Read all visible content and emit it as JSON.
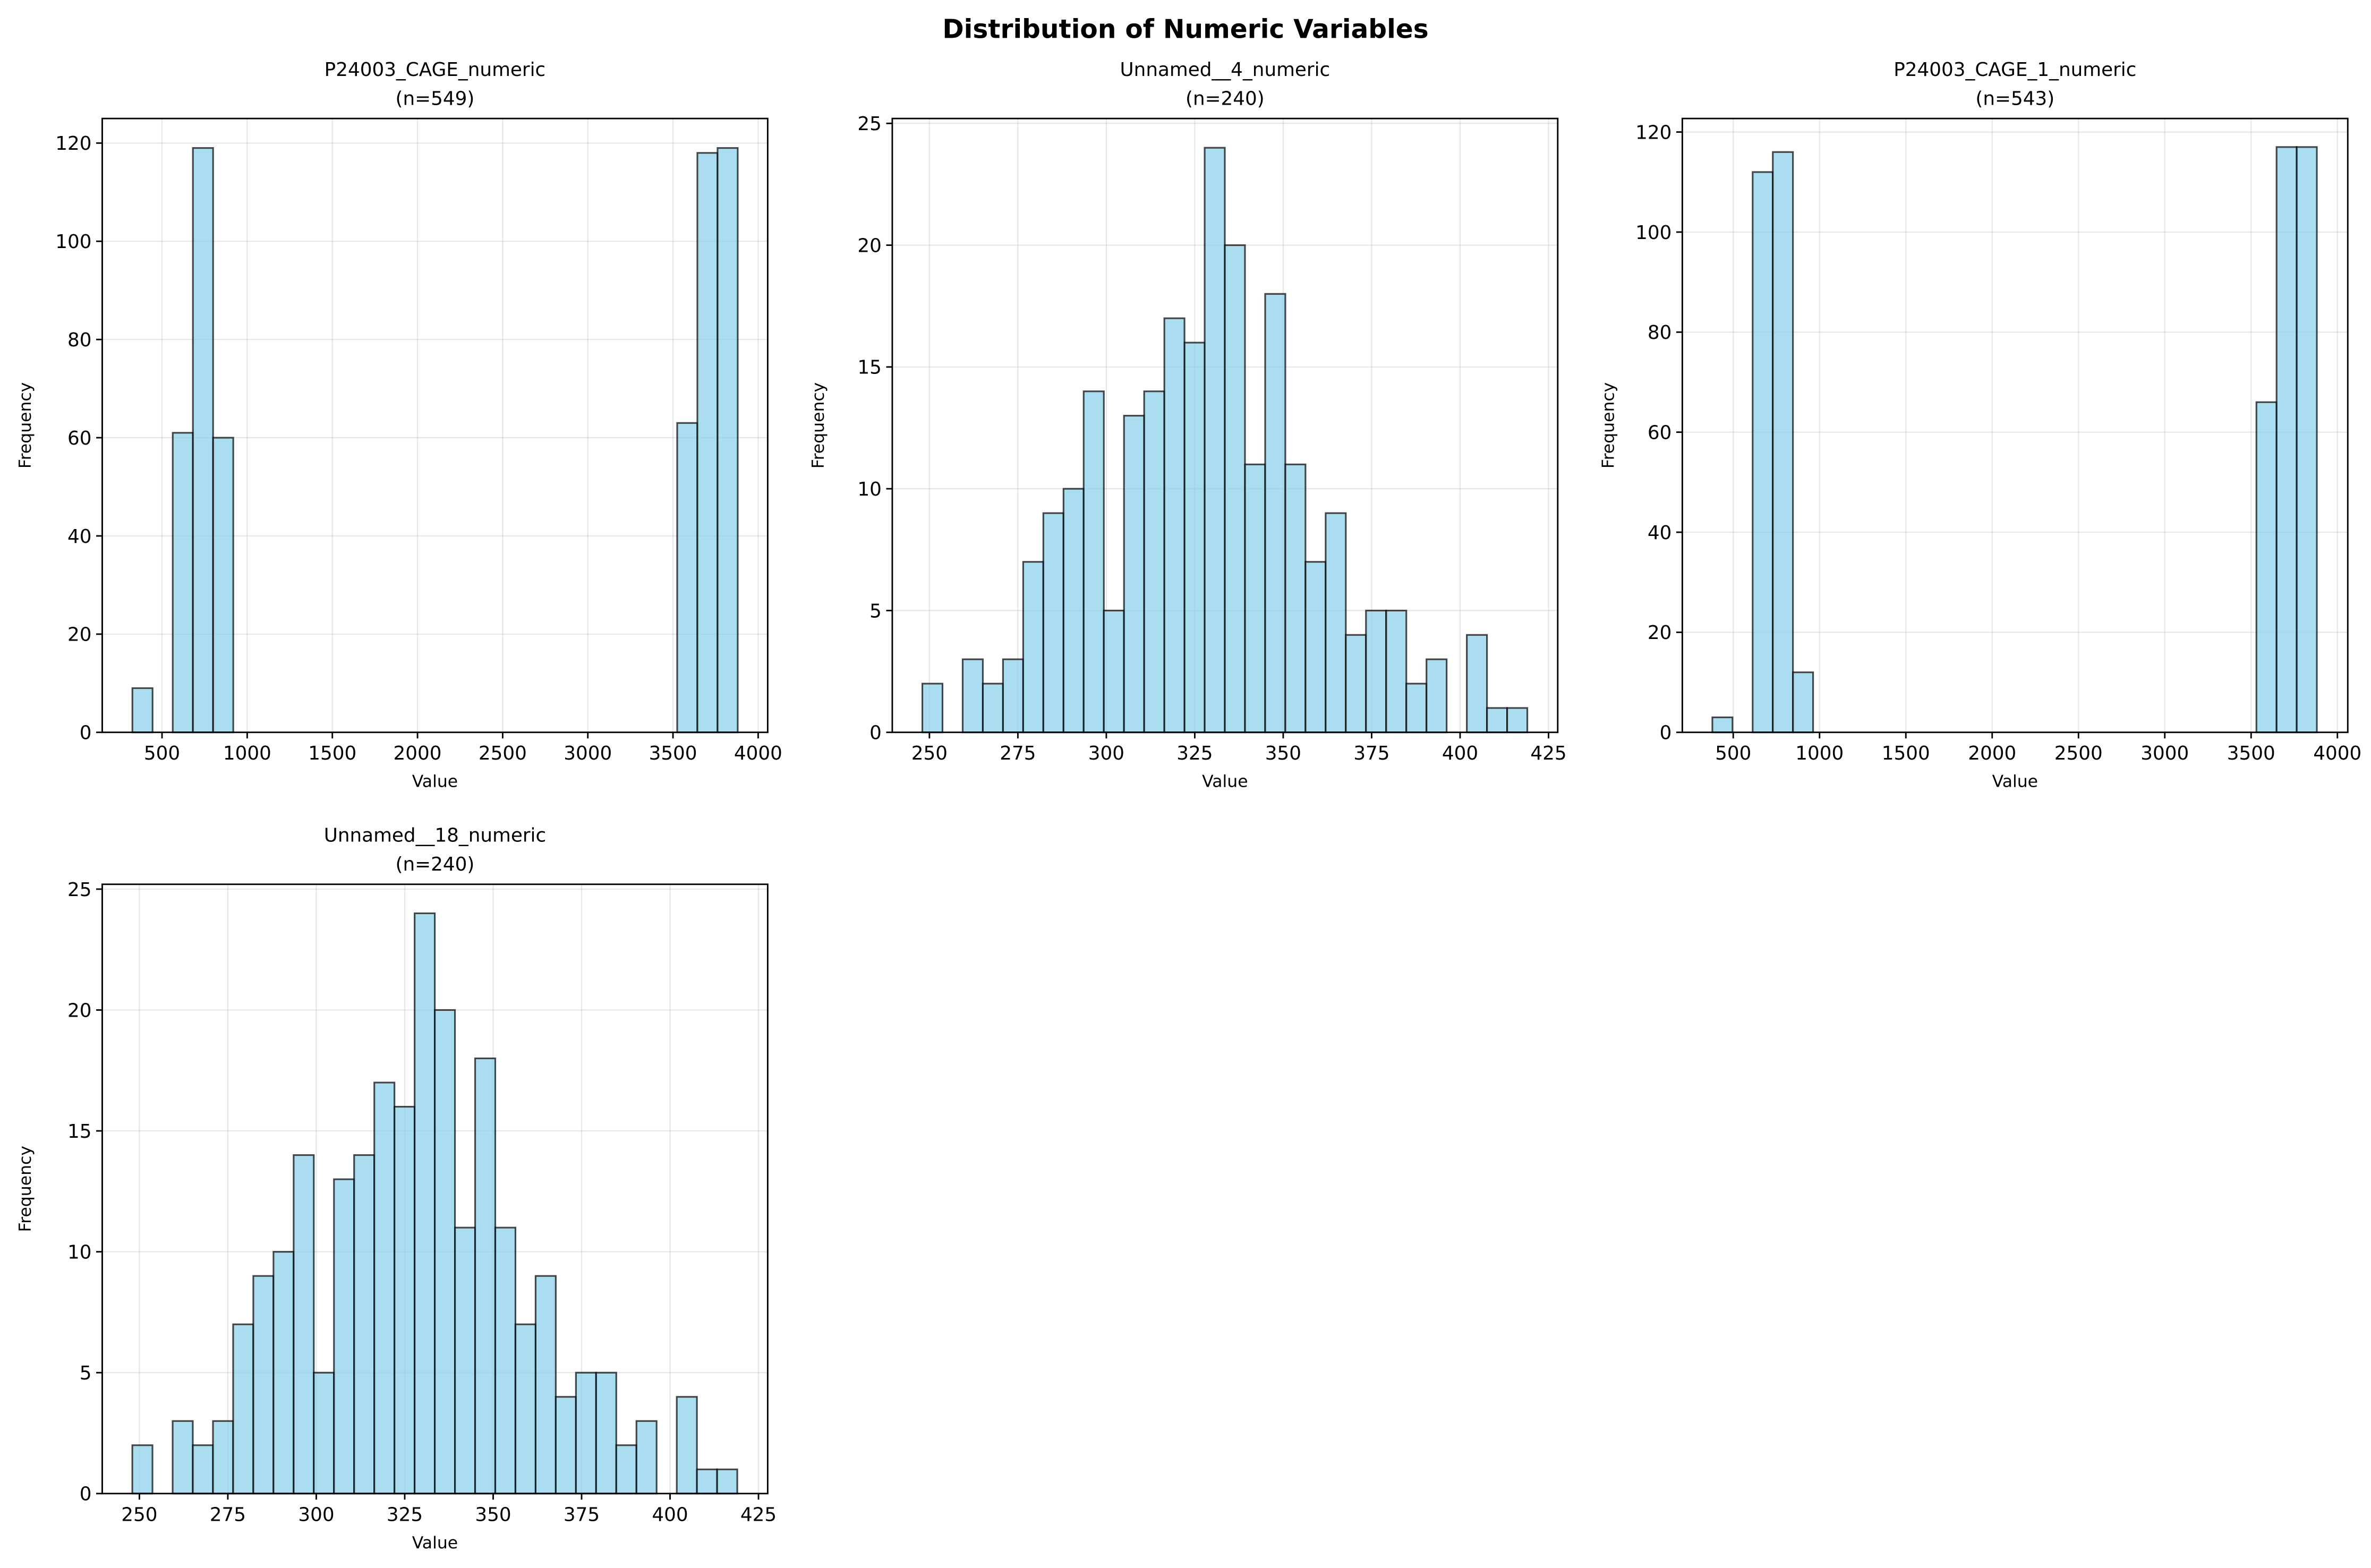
{
  "figure": {
    "title": "Distribution of Numeric Variables"
  },
  "colors": {
    "bar_fill": "#87CEEB",
    "bar_fill_alpha": 0.7,
    "bar_edge": "#000000"
  },
  "chart_data": [
    {
      "type": "bar",
      "kind": "histogram",
      "title": "P24003_CAGE_numeric",
      "subtitle": "(n=549)",
      "xlabel": "Value",
      "ylabel": "Frequency",
      "bin_range": [
        326,
        3880
      ],
      "counts": [
        9,
        0,
        61,
        119,
        60,
        0,
        0,
        0,
        0,
        0,
        0,
        0,
        0,
        0,
        0,
        0,
        0,
        0,
        0,
        0,
        0,
        0,
        0,
        0,
        0,
        0,
        0,
        63,
        118,
        119
      ],
      "xlim": [
        149,
        4056
      ],
      "ylim": [
        0,
        125
      ],
      "xticks": [
        500,
        1000,
        1500,
        2000,
        2500,
        3000,
        3500,
        4000
      ],
      "yticks": [
        0,
        20,
        40,
        60,
        80,
        100,
        120
      ],
      "grid": true
    },
    {
      "type": "bar",
      "kind": "histogram",
      "title": "Unnamed__4_numeric",
      "subtitle": "(n=240)",
      "xlabel": "Value",
      "ylabel": "Frequency",
      "bin_range": [
        248,
        419
      ],
      "counts": [
        2,
        0,
        3,
        2,
        3,
        7,
        9,
        10,
        14,
        5,
        13,
        14,
        17,
        16,
        24,
        20,
        11,
        18,
        11,
        7,
        9,
        4,
        5,
        5,
        2,
        3,
        0,
        4,
        1,
        1
      ],
      "xlim": [
        239.5,
        427.6
      ],
      "ylim": [
        0,
        25.2
      ],
      "xticks": [
        250,
        275,
        300,
        325,
        350,
        375,
        400,
        425
      ],
      "yticks": [
        0,
        5,
        10,
        15,
        20,
        25
      ],
      "grid": true
    },
    {
      "type": "bar",
      "kind": "histogram",
      "title": "P24003_CAGE_1_numeric",
      "subtitle": "(n=543)",
      "xlabel": "Value",
      "ylabel": "Frequency",
      "bin_range": [
        379,
        3881
      ],
      "counts": [
        3,
        0,
        112,
        116,
        12,
        0,
        0,
        0,
        0,
        0,
        0,
        0,
        0,
        0,
        0,
        0,
        0,
        0,
        0,
        0,
        0,
        0,
        0,
        0,
        0,
        0,
        0,
        66,
        117,
        117
      ],
      "xlim": [
        205,
        4060
      ],
      "ylim": [
        0,
        122.7
      ],
      "xticks": [
        500,
        1000,
        1500,
        2000,
        2500,
        3000,
        3500,
        4000
      ],
      "yticks": [
        0,
        20,
        40,
        60,
        80,
        100,
        120
      ],
      "grid": true
    },
    {
      "type": "bar",
      "kind": "histogram",
      "title": "Unnamed__18_numeric",
      "subtitle": "(n=240)",
      "xlabel": "Value",
      "ylabel": "Frequency",
      "bin_range": [
        248,
        419
      ],
      "counts": [
        2,
        0,
        3,
        2,
        3,
        7,
        9,
        10,
        14,
        5,
        13,
        14,
        17,
        16,
        24,
        20,
        11,
        18,
        11,
        7,
        9,
        4,
        5,
        5,
        2,
        3,
        0,
        4,
        1,
        1
      ],
      "xlim": [
        239.5,
        427.6
      ],
      "ylim": [
        0,
        25.2
      ],
      "xticks": [
        250,
        275,
        300,
        325,
        350,
        375,
        400,
        425
      ],
      "yticks": [
        0,
        5,
        10,
        15,
        20,
        25
      ],
      "grid": true
    }
  ]
}
